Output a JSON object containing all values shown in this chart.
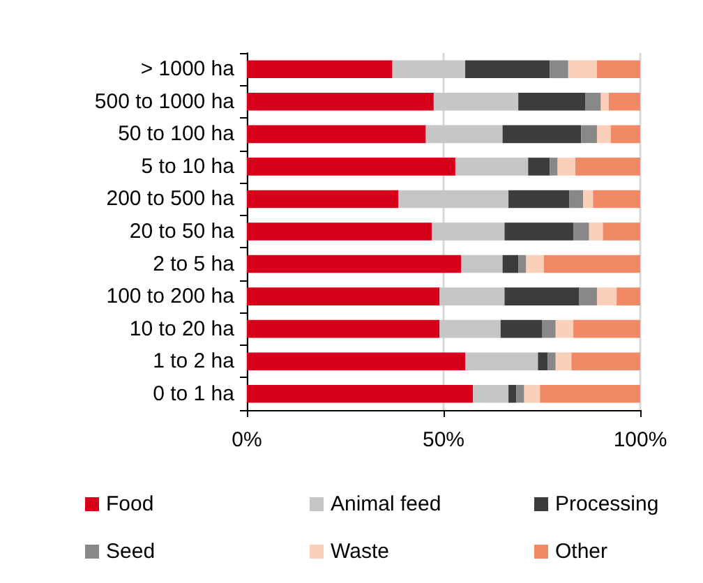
{
  "chart_data": {
    "type": "bar",
    "orientation": "horizontal",
    "stacked": true,
    "categories": [
      "> 1000 ha",
      "500 to 1000 ha",
      "50 to 100 ha",
      "5 to 10 ha",
      "200 to 500 ha",
      "20 to 50 ha",
      "2 to 5 ha",
      "100 to 200 ha",
      "10 to 20 ha",
      "1 to 2 ha",
      "0 to 1 ha"
    ],
    "series": [
      {
        "name": "Food",
        "color": "#d7001a",
        "values": [
          37,
          47.5,
          45.5,
          53,
          38.5,
          47,
          54.5,
          49,
          49,
          55.5,
          57.5
        ]
      },
      {
        "name": "Animal feed",
        "color": "#c6c6c6",
        "values": [
          18.5,
          21.5,
          19.5,
          18.5,
          28,
          18.5,
          10.5,
          16.5,
          15.5,
          18.5,
          9
        ]
      },
      {
        "name": "Processing",
        "color": "#3c3c3c",
        "values": [
          21.5,
          17,
          20,
          5.5,
          15.5,
          17.5,
          4,
          19,
          10.5,
          2.5,
          2
        ]
      },
      {
        "name": "Seed",
        "color": "#888888",
        "values": [
          4.7,
          4,
          4,
          2,
          3.5,
          4,
          2,
          4.5,
          3.5,
          2,
          2
        ]
      },
      {
        "name": "Waste",
        "color": "#fbd0bb",
        "values": [
          7.3,
          2,
          3.5,
          4.5,
          2.5,
          3.5,
          4.5,
          5,
          4.5,
          4,
          4
        ]
      },
      {
        "name": "Other",
        "color": "#f08a66",
        "values": [
          11,
          8,
          7.5,
          16.5,
          12,
          9.5,
          24.5,
          6,
          17,
          17.5,
          25.5
        ]
      }
    ],
    "xlim": [
      0,
      100
    ],
    "xticks": [
      {
        "value": 0,
        "label": "0%"
      },
      {
        "value": 50,
        "label": "50%"
      },
      {
        "value": 100,
        "label": "100%"
      }
    ],
    "grid": "x",
    "legend": "bottom"
  }
}
